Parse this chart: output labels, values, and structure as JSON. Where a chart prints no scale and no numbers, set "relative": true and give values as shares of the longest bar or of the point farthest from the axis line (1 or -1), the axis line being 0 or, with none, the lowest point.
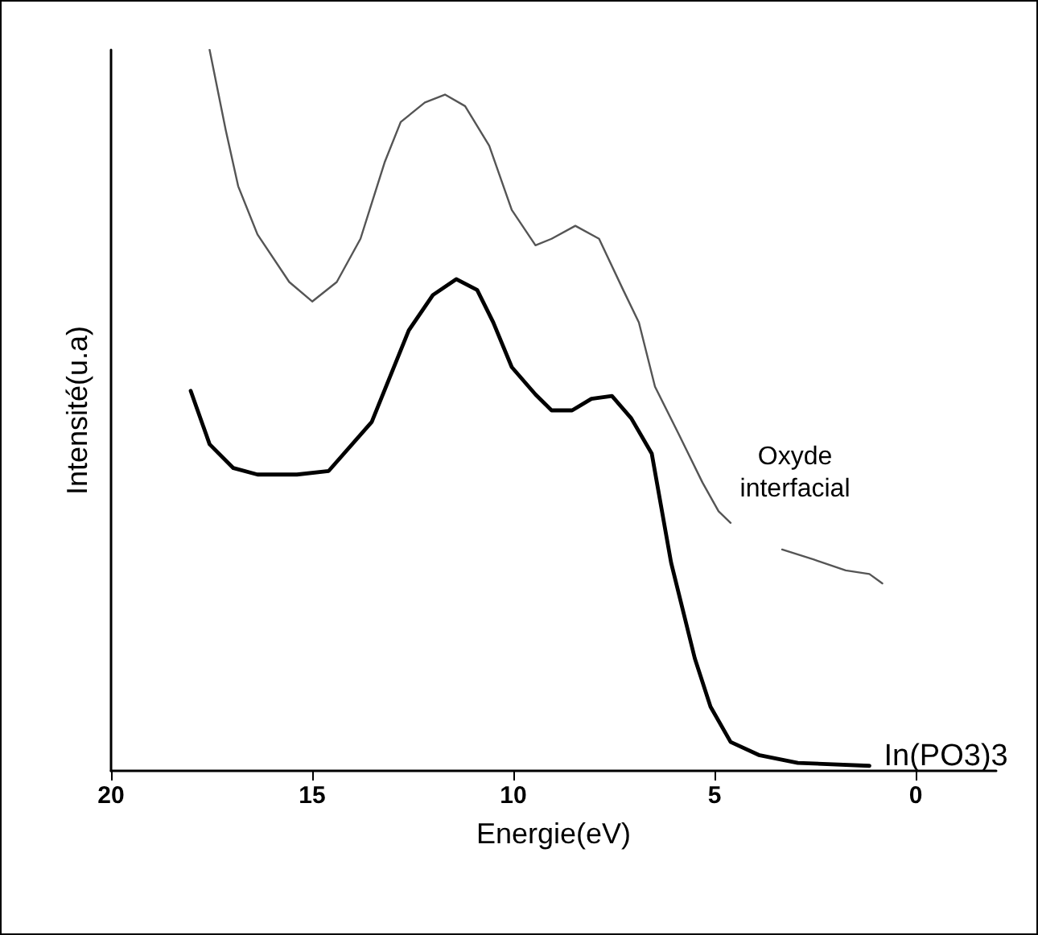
{
  "chart_data": {
    "type": "line",
    "xlabel": "Energie(eV)",
    "ylabel": "Intensité(u.a)",
    "relative": true,
    "xlim": [
      20,
      -2
    ],
    "xticks": [
      20,
      15,
      10,
      5,
      0
    ],
    "grid": false,
    "legend": false,
    "marker": "none",
    "line_style": "solid",
    "series": [
      {
        "name": "Oxyde interfacial",
        "color": "#555555",
        "x": [
          17.55,
          17.15,
          16.84,
          16.36,
          15.57,
          15.0,
          14.39,
          13.8,
          13.2,
          12.8,
          12.2,
          11.7,
          11.2,
          10.6,
          10.04,
          9.45,
          9.05,
          8.46,
          7.87,
          7.27,
          6.88,
          6.48,
          5.89,
          5.3,
          4.9,
          4.6,
          4.0,
          3.32,
          2.53,
          1.74,
          1.15,
          0.83
        ],
        "values": [
          1.0,
          0.889,
          0.811,
          0.744,
          0.678,
          0.651,
          0.678,
          0.738,
          0.844,
          0.9,
          0.927,
          0.938,
          0.922,
          0.867,
          0.778,
          0.729,
          0.738,
          0.756,
          0.738,
          0.667,
          0.622,
          0.533,
          0.467,
          0.4,
          0.36,
          0.344,
          null,
          0.307,
          0.293,
          0.278,
          0.273,
          0.26
        ]
      },
      {
        "name": "In(PO3)3",
        "color": "#000000",
        "x": [
          18.02,
          17.55,
          16.96,
          16.36,
          15.38,
          14.59,
          13.52,
          12.6,
          12.0,
          11.42,
          10.9,
          10.5,
          10.04,
          9.45,
          9.05,
          8.54,
          8.06,
          7.55,
          7.07,
          6.56,
          6.08,
          5.49,
          5.1,
          4.6,
          3.9,
          2.93,
          1.15
        ],
        "values": [
          0.527,
          0.453,
          0.42,
          0.411,
          0.411,
          0.416,
          0.484,
          0.611,
          0.66,
          0.682,
          0.667,
          0.622,
          0.56,
          0.522,
          0.5,
          0.5,
          0.516,
          0.52,
          0.489,
          0.44,
          0.289,
          0.156,
          0.089,
          0.04,
          0.022,
          0.011,
          0.007
        ]
      }
    ]
  }
}
